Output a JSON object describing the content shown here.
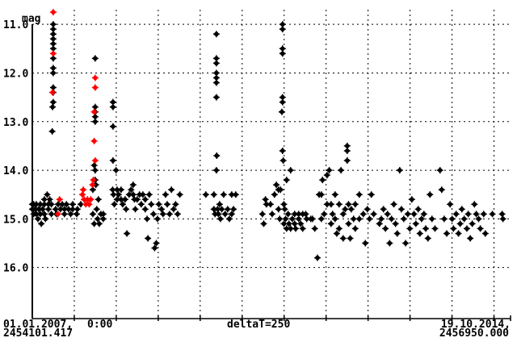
{
  "chart_data": {
    "type": "scatter",
    "ylabel": "mag",
    "y_inverted": true,
    "ylim": [
      10.5,
      17.05
    ],
    "xlim": [
      2454101.417,
      2456950.0
    ],
    "y_ticks": [
      "11.0",
      "12.0",
      "13.0",
      "14.0",
      "15.0",
      "16.0"
    ],
    "x_tick_spacing_days": 250,
    "grid": true,
    "x_labels": {
      "start_date": "01.01.2007,",
      "start_time": "0:00",
      "start_jd": "2454101.417",
      "delta": "deltaT=250",
      "end_date": "19.10.2014,",
      "end_jd": "2456950.000"
    },
    "colors": {
      "black_series": "#000000",
      "red_series": "#ff0000"
    },
    "series": [
      {
        "color": "#000000",
        "points": [
          [
            2454101,
            14.7
          ],
          [
            2454101,
            14.8
          ],
          [
            2454110,
            14.7
          ],
          [
            2454110,
            14.9
          ],
          [
            2454120,
            14.8
          ],
          [
            2454125,
            14.7
          ],
          [
            2454125,
            14.9
          ],
          [
            2454135,
            15.0
          ],
          [
            2454140,
            14.8
          ],
          [
            2454149,
            14.7
          ],
          [
            2454149,
            14.9
          ],
          [
            2454155,
            15.1
          ],
          [
            2454163,
            14.8
          ],
          [
            2454173,
            14.6
          ],
          [
            2454173,
            14.7
          ],
          [
            2454173,
            14.9
          ],
          [
            2454180,
            15.0
          ],
          [
            2454190,
            14.5
          ],
          [
            2454197,
            14.7
          ],
          [
            2454197,
            14.8
          ],
          [
            2454205,
            14.6
          ],
          [
            2454215,
            14.7
          ],
          [
            2454215,
            14.9
          ],
          [
            2454226,
            11.0
          ],
          [
            2454226,
            11.1
          ],
          [
            2454226,
            11.2
          ],
          [
            2454226,
            11.3
          ],
          [
            2454226,
            11.4
          ],
          [
            2454226,
            11.5
          ],
          [
            2454226,
            11.7
          ],
          [
            2454226,
            11.9
          ],
          [
            2454226,
            12.0
          ],
          [
            2454226,
            12.3
          ],
          [
            2454226,
            12.4
          ],
          [
            2454226,
            12.6
          ],
          [
            2454222,
            12.7
          ],
          [
            2454220,
            13.2
          ],
          [
            2454240,
            14.8
          ],
          [
            2454245,
            14.9
          ],
          [
            2454255,
            14.7
          ],
          [
            2454269,
            14.8
          ],
          [
            2454280,
            14.7
          ],
          [
            2454293,
            14.8
          ],
          [
            2454293,
            14.9
          ],
          [
            2454305,
            14.7
          ],
          [
            2454317,
            14.8
          ],
          [
            2454330,
            14.9
          ],
          [
            2454342,
            14.7
          ],
          [
            2454342,
            14.8
          ],
          [
            2454366,
            14.9
          ],
          [
            2454370,
            14.8
          ],
          [
            2454390,
            14.7
          ],
          [
            2454462,
            14.4
          ],
          [
            2454462,
            14.9
          ],
          [
            2454470,
            15.1
          ],
          [
            2454476,
            11.7
          ],
          [
            2454476,
            12.7
          ],
          [
            2454476,
            12.8
          ],
          [
            2454476,
            12.9
          ],
          [
            2454476,
            13.0
          ],
          [
            2454470,
            13.9
          ],
          [
            2454476,
            14.0
          ],
          [
            2454476,
            14.2
          ],
          [
            2454480,
            14.3
          ],
          [
            2454485,
            14.8
          ],
          [
            2454490,
            15.0
          ],
          [
            2454495,
            14.6
          ],
          [
            2454500,
            15.1
          ],
          [
            2454510,
            14.9
          ],
          [
            2454524,
            14.9
          ],
          [
            2454524,
            15.0
          ],
          [
            2454582,
            12.6
          ],
          [
            2454582,
            12.7
          ],
          [
            2454582,
            13.1
          ],
          [
            2454582,
            13.8
          ],
          [
            2454580,
            14.4
          ],
          [
            2454585,
            14.5
          ],
          [
            2454590,
            14.7
          ],
          [
            2454600,
            14.0
          ],
          [
            2454606,
            14.4
          ],
          [
            2454606,
            14.6
          ],
          [
            2454615,
            14.5
          ],
          [
            2454630,
            14.4
          ],
          [
            2454630,
            14.6
          ],
          [
            2454640,
            14.7
          ],
          [
            2454654,
            14.6
          ],
          [
            2454660,
            14.8
          ],
          [
            2454665,
            15.3
          ],
          [
            2454678,
            14.5
          ],
          [
            2454690,
            14.4
          ],
          [
            2454702,
            14.3
          ],
          [
            2454702,
            14.5
          ],
          [
            2454710,
            14.6
          ],
          [
            2454715,
            14.8
          ],
          [
            2454726,
            14.6
          ],
          [
            2454740,
            14.5
          ],
          [
            2454750,
            14.7
          ],
          [
            2454760,
            14.5
          ],
          [
            2454774,
            14.6
          ],
          [
            2454774,
            14.8
          ],
          [
            2454785,
            15.0
          ],
          [
            2454790,
            15.4
          ],
          [
            2454798,
            14.5
          ],
          [
            2454810,
            14.7
          ],
          [
            2454823,
            14.9
          ],
          [
            2454830,
            15.6
          ],
          [
            2454840,
            15.5
          ],
          [
            2454847,
            15.0
          ],
          [
            2454855,
            14.7
          ],
          [
            2454871,
            14.8
          ],
          [
            2454880,
            14.9
          ],
          [
            2454895,
            14.5
          ],
          [
            2454905,
            14.7
          ],
          [
            2454919,
            14.9
          ],
          [
            2454930,
            14.4
          ],
          [
            2454943,
            14.8
          ],
          [
            2454955,
            14.7
          ],
          [
            2454967,
            14.9
          ],
          [
            2454980,
            14.5
          ],
          [
            2455135,
            14.5
          ],
          [
            2455183,
            14.5
          ],
          [
            2455183,
            14.8
          ],
          [
            2455190,
            14.9
          ],
          [
            2455198,
            11.2
          ],
          [
            2455198,
            11.7
          ],
          [
            2455198,
            11.8
          ],
          [
            2455198,
            12.0
          ],
          [
            2455198,
            12.1
          ],
          [
            2455198,
            12.2
          ],
          [
            2455198,
            12.5
          ],
          [
            2455200,
            13.7
          ],
          [
            2455198,
            14.0
          ],
          [
            2455205,
            14.8
          ],
          [
            2455210,
            14.9
          ],
          [
            2455217,
            14.7
          ],
          [
            2455222,
            15.0
          ],
          [
            2455230,
            14.8
          ],
          [
            2455241,
            14.5
          ],
          [
            2455250,
            14.9
          ],
          [
            2455265,
            14.8
          ],
          [
            2455275,
            15.0
          ],
          [
            2455289,
            14.5
          ],
          [
            2455289,
            14.9
          ],
          [
            2455300,
            14.8
          ],
          [
            2455313,
            14.5
          ],
          [
            2455472,
            14.9
          ],
          [
            2455480,
            15.1
          ],
          [
            2455490,
            14.6
          ],
          [
            2455496,
            14.7
          ],
          [
            2455520,
            14.7
          ],
          [
            2455530,
            14.9
          ],
          [
            2455544,
            14.5
          ],
          [
            2455555,
            14.3
          ],
          [
            2455568,
            14.4
          ],
          [
            2455568,
            14.8
          ],
          [
            2455575,
            15.0
          ],
          [
            2455580,
            14.4
          ],
          [
            2455592,
            11.0
          ],
          [
            2455592,
            11.1
          ],
          [
            2455592,
            11.5
          ],
          [
            2455592,
            11.6
          ],
          [
            2455592,
            12.5
          ],
          [
            2455592,
            12.6
          ],
          [
            2455588,
            12.8
          ],
          [
            2455592,
            13.6
          ],
          [
            2455596,
            13.8
          ],
          [
            2455600,
            14.7
          ],
          [
            2455600,
            15.1
          ],
          [
            2455605,
            14.8
          ],
          [
            2455610,
            15.0
          ],
          [
            2455616,
            15.2
          ],
          [
            2455616,
            14.2
          ],
          [
            2455625,
            14.9
          ],
          [
            2455630,
            15.1
          ],
          [
            2455640,
            14.0
          ],
          [
            2455640,
            15.2
          ],
          [
            2455650,
            15.0
          ],
          [
            2455664,
            14.9
          ],
          [
            2455664,
            15.1
          ],
          [
            2455670,
            15.2
          ],
          [
            2455688,
            14.9
          ],
          [
            2455688,
            15.0
          ],
          [
            2455700,
            15.1
          ],
          [
            2455712,
            14.9
          ],
          [
            2455712,
            15.2
          ],
          [
            2455730,
            14.9
          ],
          [
            2455736,
            15.0
          ],
          [
            2455760,
            15.0
          ],
          [
            2455770,
            15.0
          ],
          [
            2455784,
            15.2
          ],
          [
            2455800,
            15.8
          ],
          [
            2455810,
            14.5
          ],
          [
            2455823,
            14.5
          ],
          [
            2455823,
            15.0
          ],
          [
            2455830,
            14.2
          ],
          [
            2455840,
            14.9
          ],
          [
            2455857,
            14.1
          ],
          [
            2455857,
            14.7
          ],
          [
            2455870,
            14.0
          ],
          [
            2455881,
            14.7
          ],
          [
            2455881,
            15.1
          ],
          [
            2455890,
            14.9
          ],
          [
            2455905,
            14.5
          ],
          [
            2455905,
            15.0
          ],
          [
            2455915,
            15.3
          ],
          [
            2455929,
            14.7
          ],
          [
            2455929,
            15.2
          ],
          [
            2455940,
            14.0
          ],
          [
            2455953,
            14.9
          ],
          [
            2455953,
            15.4
          ],
          [
            2455965,
            14.8
          ],
          [
            2455977,
            13.5
          ],
          [
            2455977,
            13.6
          ],
          [
            2455977,
            13.8
          ],
          [
            2455985,
            14.7
          ],
          [
            2455985,
            15.1
          ],
          [
            2455995,
            15.4
          ],
          [
            2456001,
            14.8
          ],
          [
            2456015,
            15.0
          ],
          [
            2456025,
            14.7
          ],
          [
            2456025,
            15.2
          ],
          [
            2456049,
            14.5
          ],
          [
            2456049,
            15.0
          ],
          [
            2456073,
            14.9
          ],
          [
            2456085,
            15.5
          ],
          [
            2456097,
            14.8
          ],
          [
            2456110,
            15.0
          ],
          [
            2456121,
            14.5
          ],
          [
            2456135,
            14.9
          ],
          [
            2456169,
            15.1
          ],
          [
            2456180,
            15.0
          ],
          [
            2456193,
            14.8
          ],
          [
            2456205,
            15.2
          ],
          [
            2456217,
            14.9
          ],
          [
            2456230,
            15.5
          ],
          [
            2456241,
            15.0
          ],
          [
            2456255,
            14.7
          ],
          [
            2456265,
            15.1
          ],
          [
            2456275,
            15.3
          ],
          [
            2456290,
            14.0
          ],
          [
            2456300,
            14.8
          ],
          [
            2456314,
            15.0
          ],
          [
            2456325,
            15.5
          ],
          [
            2456338,
            14.9
          ],
          [
            2456350,
            15.2
          ],
          [
            2456362,
            14.6
          ],
          [
            2456375,
            14.9
          ],
          [
            2456386,
            15.1
          ],
          [
            2456400,
            14.8
          ],
          [
            2456410,
            15.3
          ],
          [
            2456420,
            15.0
          ],
          [
            2456434,
            14.9
          ],
          [
            2456445,
            15.2
          ],
          [
            2456458,
            15.4
          ],
          [
            2456470,
            14.5
          ],
          [
            2456482,
            15.0
          ],
          [
            2456500,
            15.2
          ],
          [
            2456530,
            14.0
          ],
          [
            2456540,
            14.4
          ],
          [
            2456555,
            15.0
          ],
          [
            2456570,
            15.3
          ],
          [
            2456590,
            14.7
          ],
          [
            2456602,
            15.0
          ],
          [
            2456610,
            15.2
          ],
          [
            2456626,
            14.9
          ],
          [
            2456640,
            15.3
          ],
          [
            2456650,
            15.1
          ],
          [
            2456660,
            14.8
          ],
          [
            2456674,
            15.0
          ],
          [
            2456690,
            15.2
          ],
          [
            2456698,
            14.9
          ],
          [
            2456710,
            15.4
          ],
          [
            2456722,
            15.1
          ],
          [
            2456735,
            14.7
          ],
          [
            2456746,
            14.9
          ],
          [
            2456760,
            15.0
          ],
          [
            2456770,
            15.2
          ],
          [
            2456790,
            14.9
          ],
          [
            2456800,
            15.3
          ],
          [
            2456842,
            14.9
          ],
          [
            2456900,
            14.9
          ],
          [
            2456905,
            15.0
          ]
        ]
      },
      {
        "color": "#ff0000",
        "points": [
          [
            2454226,
            10.75
          ],
          [
            2454226,
            11.6
          ],
          [
            2454222,
            12.4
          ],
          [
            2454264,
            14.6
          ],
          [
            2454254,
            14.9
          ],
          [
            2454400,
            14.5
          ],
          [
            2454405,
            14.4
          ],
          [
            2454410,
            14.6
          ],
          [
            2454420,
            14.7
          ],
          [
            2454430,
            14.6
          ],
          [
            2454440,
            14.7
          ],
          [
            2454450,
            14.6
          ],
          [
            2454460,
            14.3
          ],
          [
            2454465,
            14.2
          ],
          [
            2454476,
            12.1
          ],
          [
            2454476,
            12.3
          ],
          [
            2454470,
            12.8
          ],
          [
            2454470,
            13.4
          ],
          [
            2454476,
            13.8
          ]
        ]
      }
    ]
  }
}
